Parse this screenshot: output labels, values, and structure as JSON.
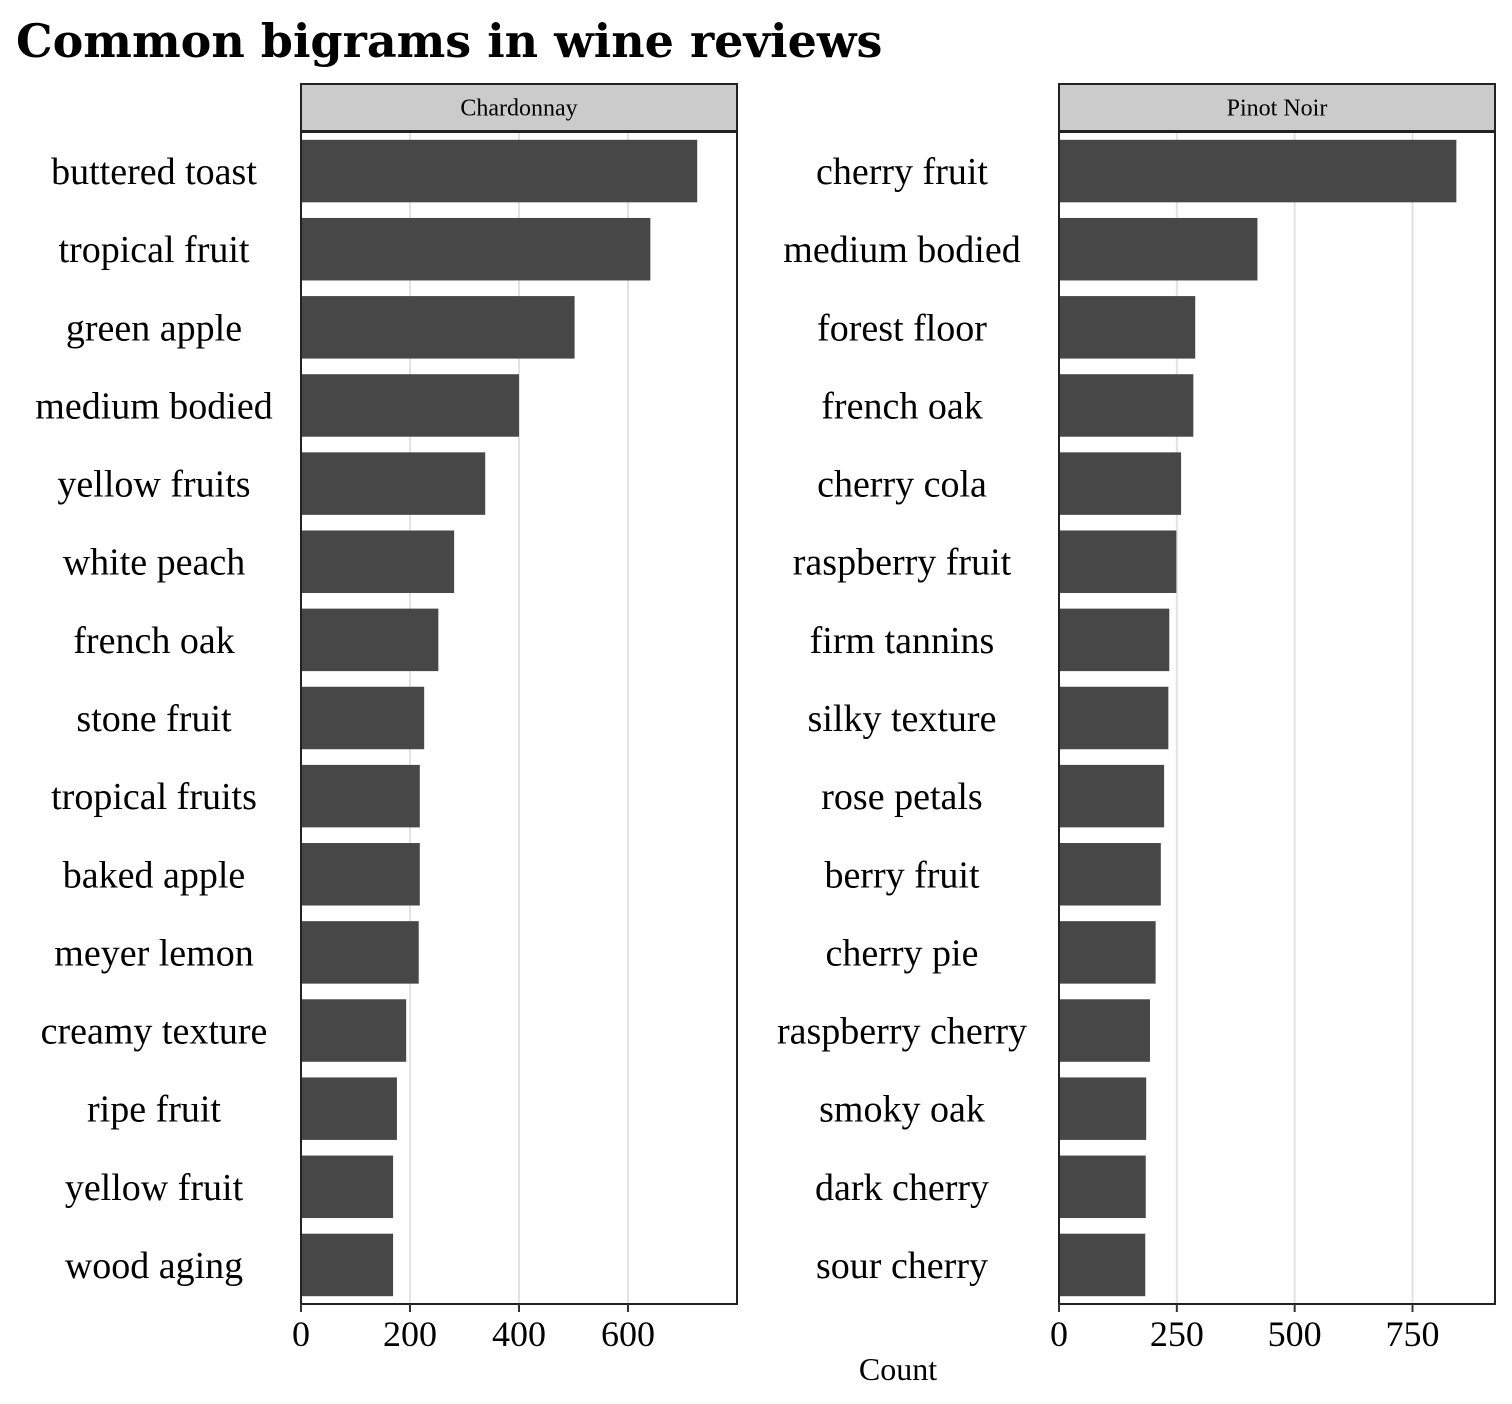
{
  "chart_data": {
    "type": "bar",
    "orientation": "horizontal",
    "title": "Common bigrams in wine reviews",
    "xlabel": "Count",
    "grid": true,
    "legend": "none",
    "colors": {
      "bar": "#474747",
      "strip_fill": "#cbcbcb",
      "grid": "#e2e2e2"
    },
    "panels": [
      {
        "name": "Chardonnay",
        "xlim": [
          0,
          800
        ],
        "xticks": [
          0,
          200,
          400,
          600
        ],
        "categories": [
          "buttered toast",
          "tropical fruit",
          "green apple",
          "medium bodied",
          "yellow fruits",
          "white peach",
          "french oak",
          "stone fruit",
          "tropical fruits",
          "baked apple",
          "meyer lemon",
          "creamy texture",
          "ripe fruit",
          "yellow fruit",
          "wood aging"
        ],
        "values": [
          727,
          641,
          502,
          400,
          338,
          281,
          252,
          226,
          218,
          218,
          216,
          193,
          176,
          169,
          169
        ]
      },
      {
        "name": "Pinot Noir",
        "xlim": [
          0,
          925
        ],
        "xticks": [
          0,
          250,
          500,
          750
        ],
        "categories": [
          "cherry fruit",
          "medium bodied",
          "forest floor",
          "french oak",
          "cherry cola",
          "raspberry fruit",
          "firm tannins",
          "silky texture",
          "rose petals",
          "berry fruit",
          "cherry pie",
          "raspberry cherry",
          "smoky oak",
          "dark cherry",
          "sour cherry"
        ],
        "values": [
          843,
          421,
          289,
          285,
          259,
          249,
          234,
          232,
          223,
          216,
          205,
          193,
          185,
          184,
          183
        ]
      }
    ]
  }
}
